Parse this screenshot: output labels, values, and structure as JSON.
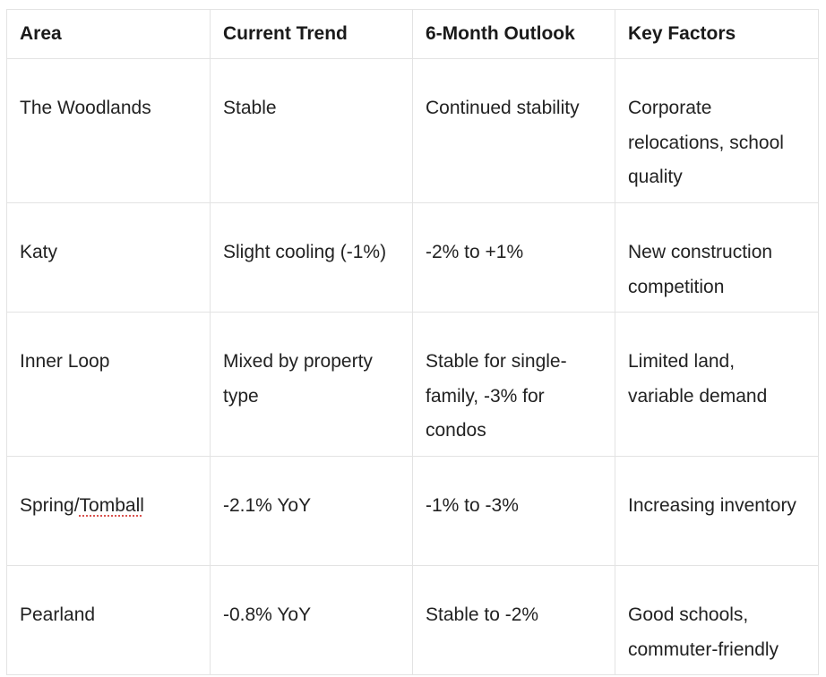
{
  "table": {
    "headers": [
      "Area",
      "Current Trend",
      "6-Month Outlook",
      "Key Factors"
    ],
    "rows": [
      {
        "area": "The Woodlands",
        "trend": "Stable",
        "outlook": "Continued stability",
        "factors": "Corporate relocations, school quality"
      },
      {
        "area": "Katy",
        "trend": "Slight cooling (-1%)",
        "outlook": "-2% to +1%",
        "factors": "New construction competition"
      },
      {
        "area": "Inner Loop",
        "trend": "Mixed by property type",
        "outlook": "Stable for single-family, -3% for condos",
        "factors": "Limited land, variable demand"
      },
      {
        "area_prefix": "Spring/",
        "area_spell": "Tomball",
        "trend": "-2.1% YoY",
        "outlook": "-1% to -3%",
        "factors": "Increasing inventory"
      },
      {
        "area": "Pearland",
        "trend": "-0.8% YoY",
        "outlook": "Stable to -2%",
        "factors": "Good schools, commuter-friendly"
      }
    ]
  }
}
